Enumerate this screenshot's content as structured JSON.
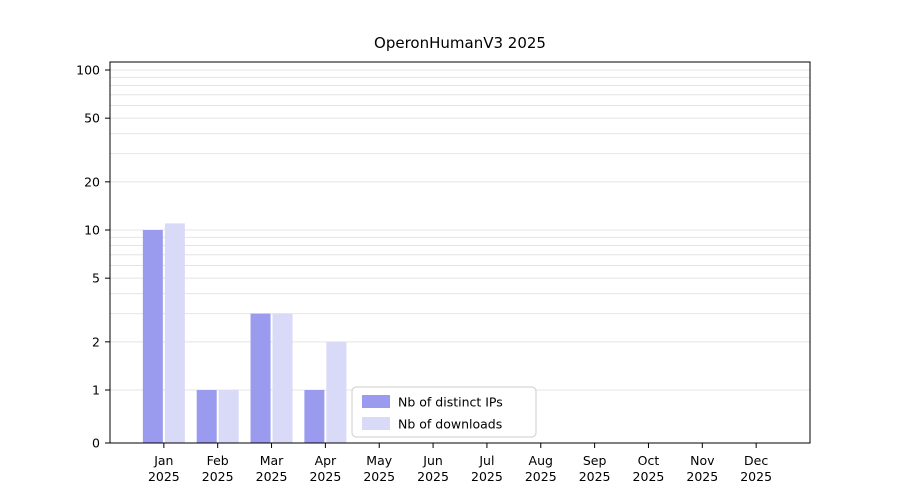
{
  "chart_data": {
    "type": "bar",
    "title": "OperonHumanV3 2025",
    "categories": [
      "Jan",
      "Feb",
      "Mar",
      "Apr",
      "May",
      "Jun",
      "Jul",
      "Aug",
      "Sep",
      "Oct",
      "Nov",
      "Dec"
    ],
    "x_second_line": "2025",
    "series": [
      {
        "name": "Nb of distinct IPs",
        "color": "#9a9aee",
        "values": [
          10,
          1,
          3,
          1,
          0,
          0,
          0,
          0,
          0,
          0,
          0,
          0
        ]
      },
      {
        "name": "Nb of downloads",
        "color": "#d9d9f8",
        "values": [
          11,
          1,
          3,
          2,
          0,
          0,
          0,
          0,
          0,
          0,
          0,
          0
        ]
      }
    ],
    "yticks": [
      0,
      1,
      2,
      5,
      10,
      20,
      50,
      100
    ],
    "ylim": [
      0,
      112
    ],
    "yscale": "symlog",
    "grid": "horizontal",
    "gridline_values": [
      1,
      2,
      3,
      4,
      5,
      6,
      7,
      8,
      9,
      10,
      20,
      30,
      40,
      50,
      60,
      70,
      80,
      90,
      100
    ],
    "legend_position": "lower-center-inside"
  },
  "colors": {
    "grid": "#e4e4e4",
    "axis": "#000000",
    "background": "#ffffff",
    "legend_border": "#cccccc",
    "legend_background": "#ffffff"
  }
}
